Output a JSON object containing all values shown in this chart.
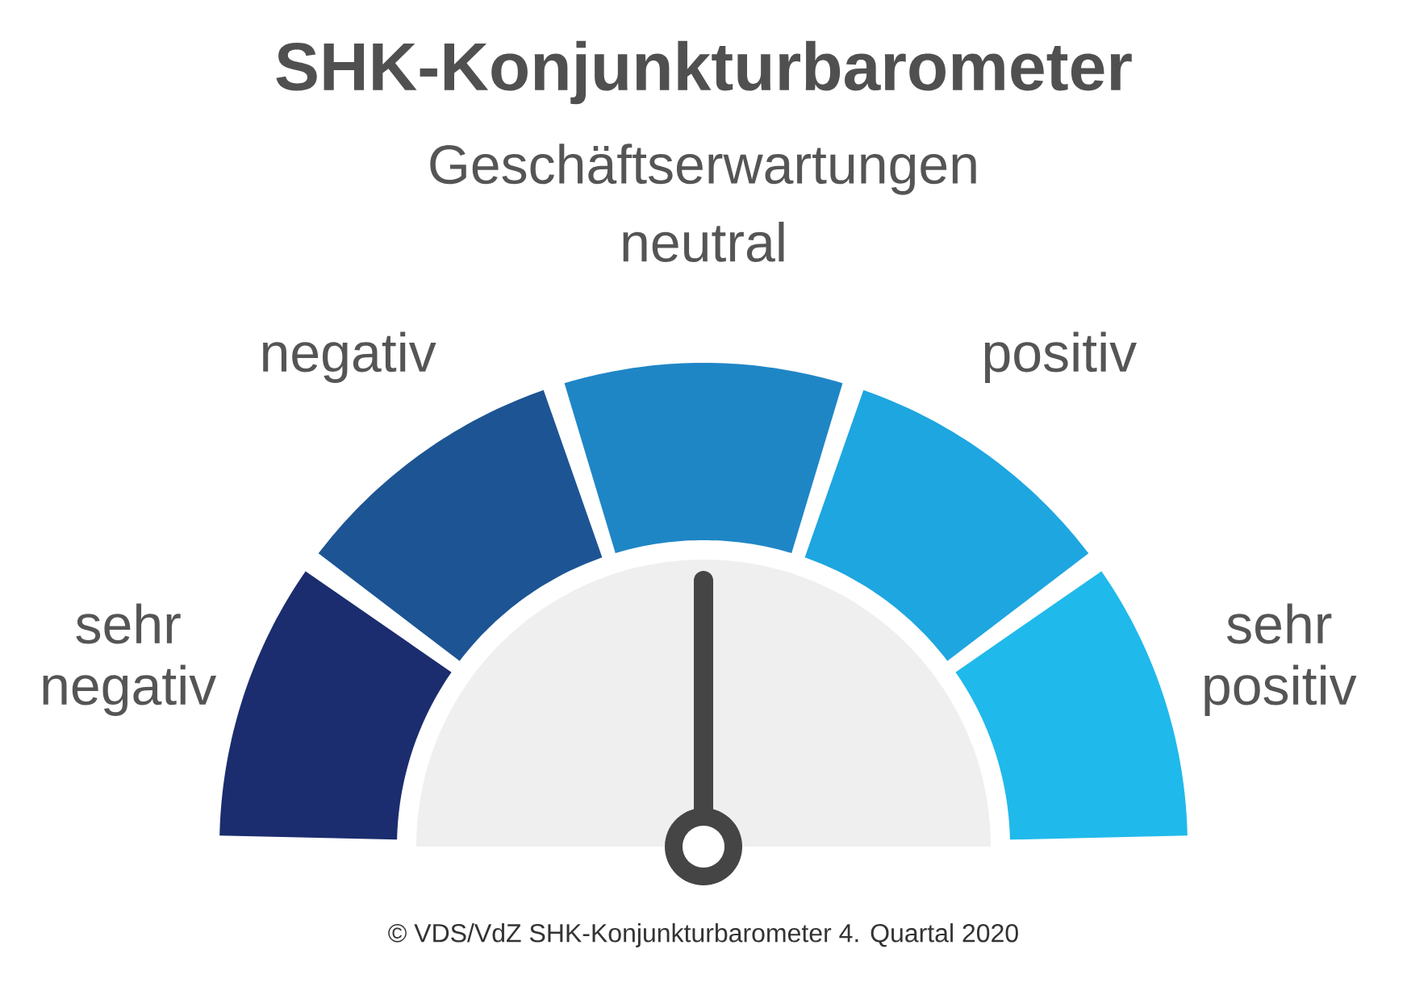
{
  "chart_data": {
    "type": "donut",
    "title": "SHK-Konjunkturbarometer",
    "subtitle": "Geschäftserwartungen",
    "categories": [
      "sehr negativ",
      "negativ",
      "neutral",
      "positiv",
      "sehr positiv"
    ],
    "values": [
      20,
      20,
      20,
      20,
      20
    ],
    "colors": [
      "#1b2d6e",
      "#1d5494",
      "#1f86c6",
      "#1ea6e0",
      "#20b9eb"
    ],
    "needle": "neutral",
    "annotations": [
      "© VDS/VdZ SHK-Konjunkturbarometer 4. Quartal 2020"
    ]
  }
}
